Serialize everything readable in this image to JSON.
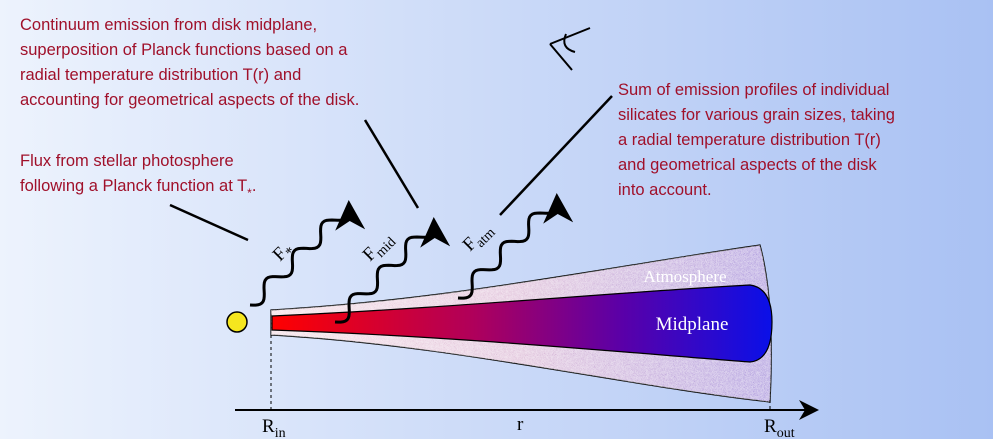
{
  "annotations": [
    {
      "lines": [
        "Continuum emission from disk midplane,",
        "superposition of Planck functions based on a",
        "radial temperature distribution T(r) and",
        "accounting for geometrical aspects of the disk."
      ]
    },
    {
      "lines": [
        "Flux from stellar photosphere",
        "following a Planck function at T"
      ],
      "subscript": "*",
      "end": "."
    },
    {
      "lines": [
        "Sum of emission profiles of individual",
        "silicates for various grain sizes, taking",
        "a radial temperature distribution T(r)",
        "and geometrical aspects of the disk",
        "into account."
      ]
    }
  ],
  "fluxes": [
    {
      "symbol": "F",
      "subscript": "*"
    },
    {
      "symbol": "F",
      "subscript": "mid"
    },
    {
      "symbol": "F",
      "subscript": "atm"
    }
  ],
  "disk": {
    "atmosphere": "Atmosphere",
    "midplane": "Midplane"
  },
  "axis": {
    "inner": {
      "symbol": "R",
      "subscript": "in"
    },
    "label": "r",
    "outer": {
      "symbol": "R",
      "subscript": "out"
    }
  }
}
